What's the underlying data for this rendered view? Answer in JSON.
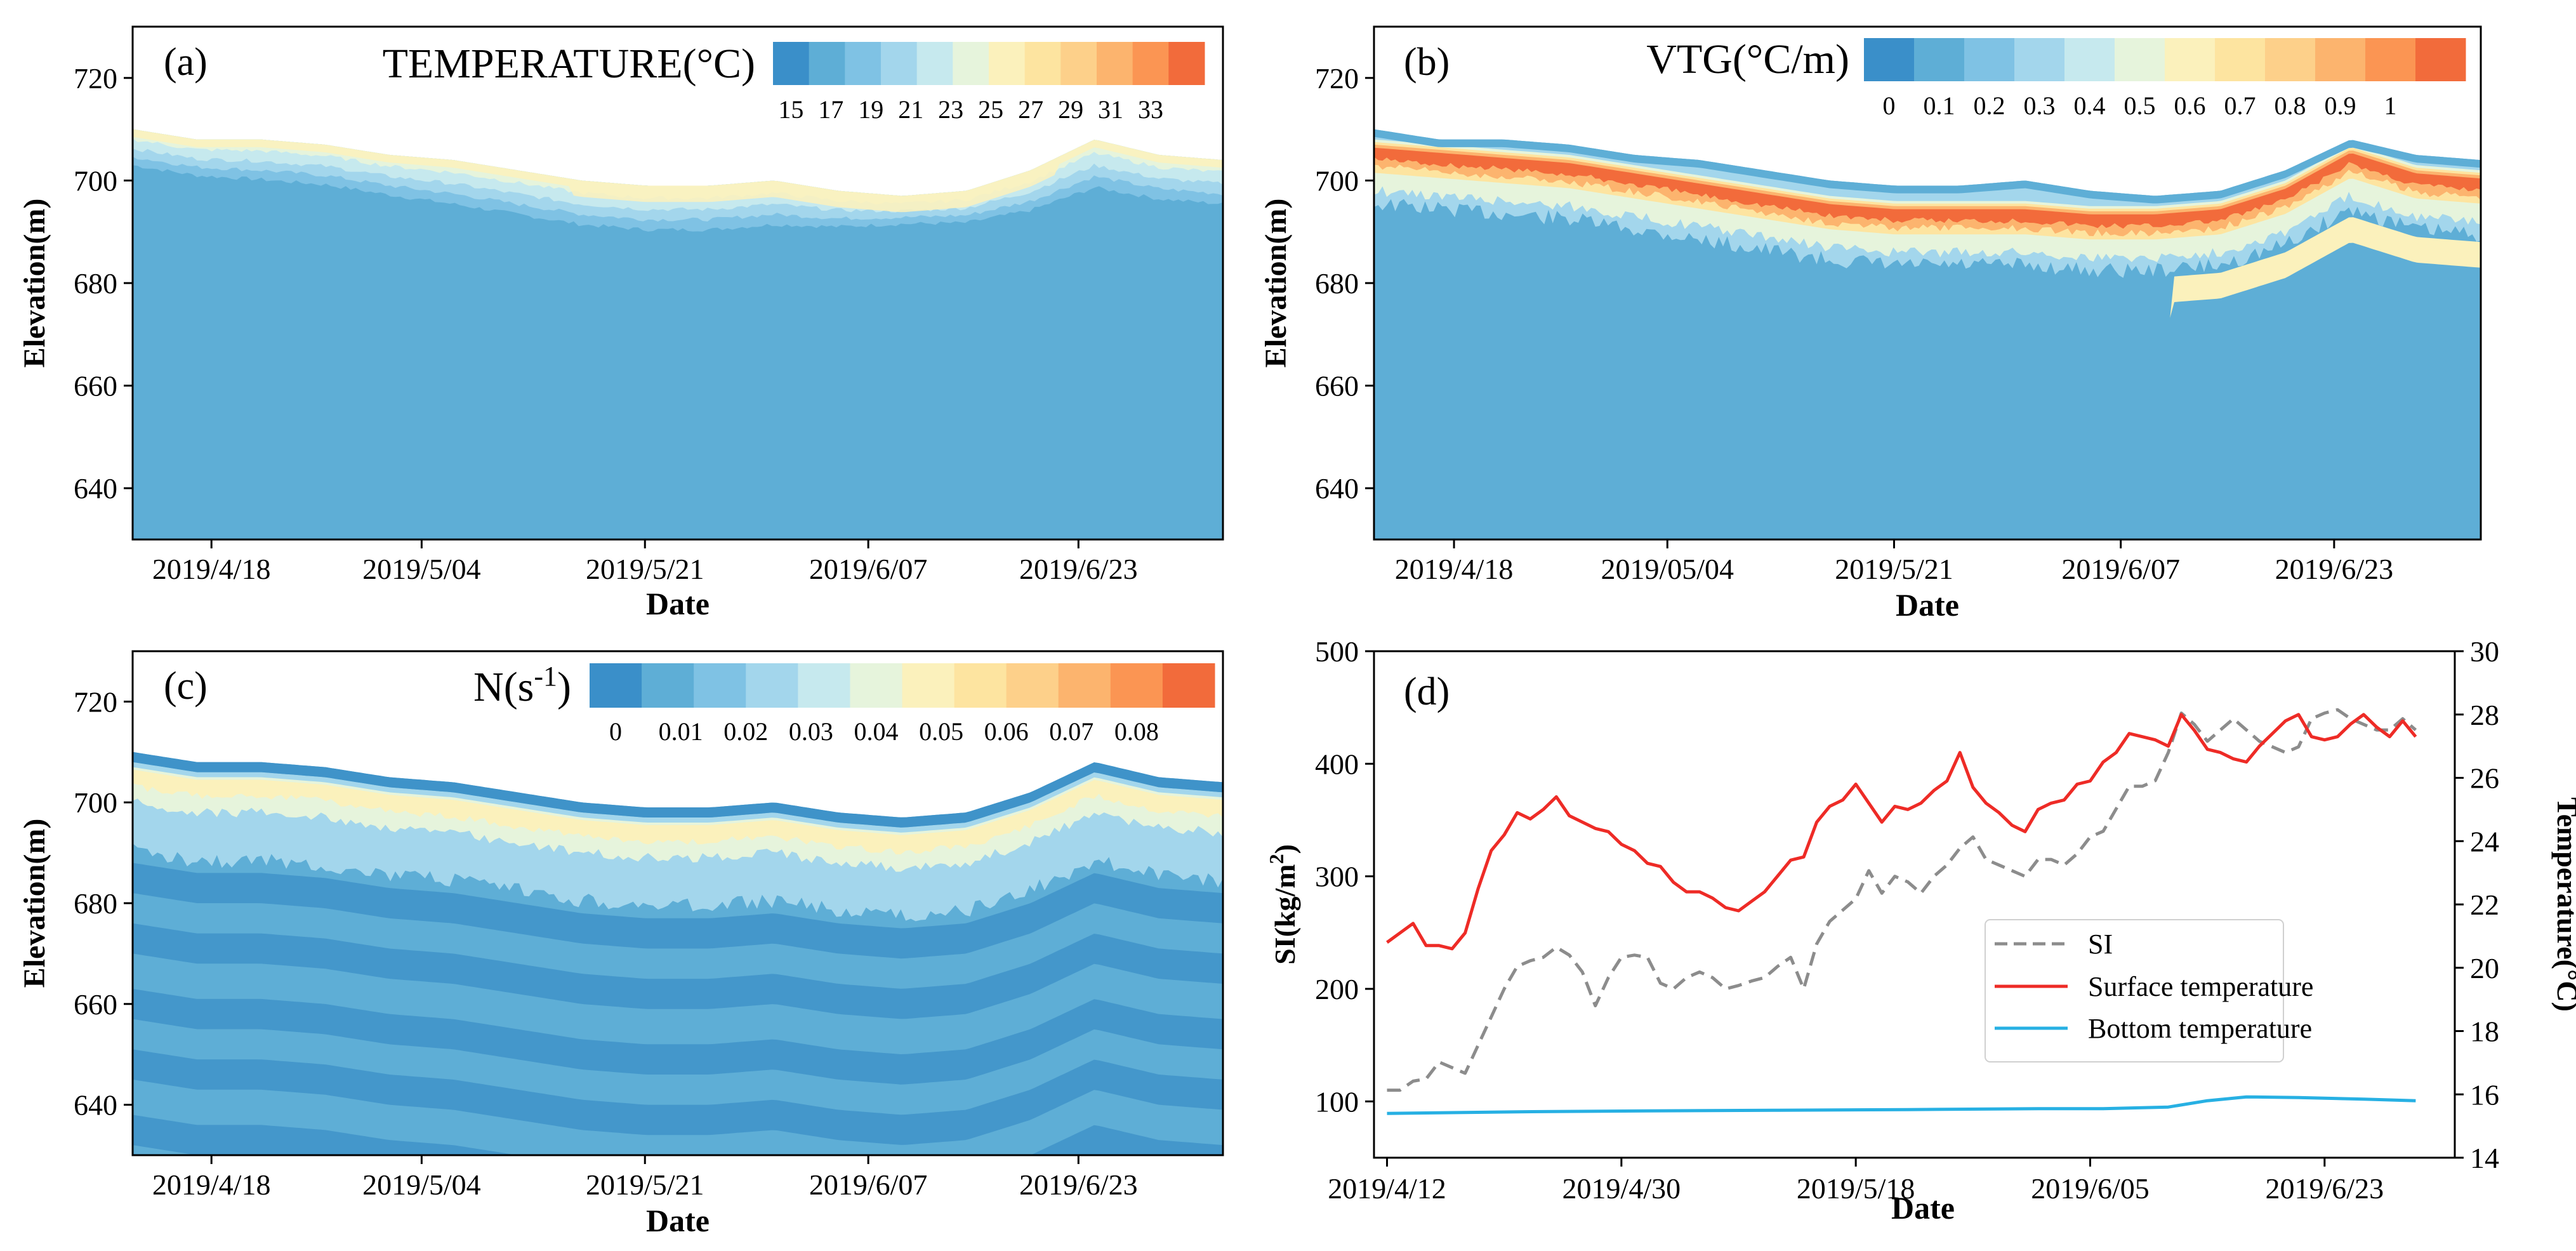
{
  "colors": {
    "fill_base": "#5eaed6",
    "line_black": "#000000",
    "si_line": "#8c8c8c",
    "surface_line": "#ee2b26",
    "bottom_line": "#27b0e3"
  },
  "chart_data": [
    {
      "id": "a",
      "type": "heatmap",
      "panel_label": "(a)",
      "colorbar_title": "TEMPERATURE(°C)",
      "colorbar_ticks": [
        "15",
        "17",
        "19",
        "21",
        "23",
        "25",
        "27",
        "29",
        "31",
        "33"
      ],
      "colorbar_colors": [
        "#3a8fc9",
        "#5eaed6",
        "#7fc2e4",
        "#a3d6ec",
        "#c6e9ee",
        "#e6f4dc",
        "#fbf1bc",
        "#fde4a0",
        "#fdd08a",
        "#fcb46e",
        "#fb9553",
        "#f26b3b"
      ],
      "xlabel": "Date",
      "ylabel": "Elevation(m)",
      "xticks": [
        "2019/4/18",
        "2019/5/04",
        "2019/5/21",
        "2019/6/07",
        "2019/6/23"
      ],
      "xtick_days": [
        6,
        22,
        39,
        56,
        72
      ],
      "x_range_days": [
        0,
        83
      ],
      "yticks": [
        640,
        660,
        680,
        700,
        720
      ],
      "ylim": [
        630,
        730
      ],
      "surface_elevation": [
        710,
        708,
        708,
        707,
        705,
        704,
        702,
        700,
        699,
        699,
        700,
        698,
        697,
        698,
        702,
        708,
        705,
        704
      ],
      "thermocline_elevation": [
        701,
        699,
        698,
        697,
        695,
        693,
        691,
        689,
        688,
        688,
        689,
        689,
        690,
        690,
        692,
        696,
        694,
        693
      ],
      "surface_value_range": [
        21,
        27
      ],
      "bottom_value": 16
    },
    {
      "id": "b",
      "type": "heatmap",
      "panel_label": "(b)",
      "colorbar_title": "VTG(°C/m)",
      "colorbar_ticks": [
        "0",
        "0.1",
        "0.2",
        "0.3",
        "0.4",
        "0.5",
        "0.6",
        "0.7",
        "0.8",
        "0.9",
        "1"
      ],
      "colorbar_colors": [
        "#3a8fc9",
        "#5eaed6",
        "#7fc2e4",
        "#a3d6ec",
        "#c6e9ee",
        "#e6f4dc",
        "#fbf1bc",
        "#fde4a0",
        "#fdd08a",
        "#fcb46e",
        "#fb9553",
        "#f26b3b"
      ],
      "xlabel": "Date",
      "ylabel": "Elevation(m)",
      "xticks": [
        "2019/4/18",
        "2019/05/04",
        "2019/5/21",
        "2019/6/07",
        "2019/6/23"
      ],
      "xtick_days": [
        6,
        22,
        39,
        56,
        72
      ],
      "x_range_days": [
        0,
        83
      ],
      "yticks": [
        640,
        660,
        680,
        700,
        720
      ],
      "ylim": [
        630,
        730
      ],
      "surface_elevation": [
        710,
        708,
        708,
        707,
        705,
        704,
        702,
        700,
        699,
        699,
        700,
        698,
        697,
        698,
        702,
        708,
        705,
        704
      ],
      "max_gradient_elevation": [
        706,
        705,
        704,
        703,
        701,
        699,
        697,
        695,
        694,
        694,
        694,
        693,
        693,
        694,
        698,
        705,
        701,
        700
      ],
      "max_gradient_value": 1.0
    },
    {
      "id": "c",
      "type": "heatmap",
      "panel_label": "(c)",
      "colorbar_title": "N(s",
      "colorbar_title_sup": "-1",
      "colorbar_title_end": ")",
      "colorbar_ticks": [
        "0",
        "0.01",
        "0.02",
        "0.03",
        "0.04",
        "0.05",
        "0.06",
        "0.07",
        "0.08"
      ],
      "colorbar_colors": [
        "#3a8fc9",
        "#5eaed6",
        "#7fc2e4",
        "#a3d6ec",
        "#c6e9ee",
        "#e6f4dc",
        "#fbf1bc",
        "#fde4a0",
        "#fdd08a",
        "#fcb46e",
        "#fb9553",
        "#f26b3b"
      ],
      "xlabel": "Date",
      "ylabel": "Elevation(m)",
      "xticks": [
        "2019/4/18",
        "2019/5/04",
        "2019/5/21",
        "2019/6/07",
        "2019/6/23"
      ],
      "xtick_days": [
        6,
        22,
        39,
        56,
        72
      ],
      "x_range_days": [
        0,
        83
      ],
      "yticks": [
        640,
        660,
        680,
        700,
        720
      ],
      "ylim": [
        630,
        730
      ],
      "surface_elevation": [
        710,
        708,
        708,
        707,
        705,
        704,
        702,
        700,
        699,
        699,
        700,
        698,
        697,
        698,
        702,
        708,
        705,
        704
      ],
      "dark_band_depths_below_surface": [
        25,
        37,
        50,
        62,
        75
      ]
    },
    {
      "id": "d",
      "type": "line",
      "panel_label": "(d)",
      "xlabel": "Date",
      "ylabel_left": "SI(kg/m",
      "ylabel_left_sup": "2",
      "ylabel_left_end": ")",
      "ylabel_right": "Temperature(°C)",
      "xticks": [
        "2019/4/12",
        "2019/4/30",
        "2019/5/18",
        "2019/6/05",
        "2019/6/23"
      ],
      "xtick_days": [
        0,
        18,
        36,
        54,
        72
      ],
      "x_range_days": [
        -1,
        82
      ],
      "ylim_left": [
        50,
        500
      ],
      "yticks_left": [
        100,
        200,
        300,
        400,
        500
      ],
      "ylim_right": [
        14,
        30
      ],
      "yticks_right": [
        14,
        16,
        18,
        20,
        22,
        24,
        26,
        28,
        30
      ],
      "legend": [
        "SI",
        "Surface temperature",
        "Bottom temperature"
      ],
      "series": [
        {
          "name": "SI",
          "axis": "left",
          "style": "dashed",
          "x": [
            0,
            1,
            2,
            3,
            4,
            5,
            6,
            7,
            8,
            9,
            10,
            11,
            12,
            13,
            14,
            15,
            16,
            17,
            18,
            19,
            20,
            21,
            22,
            23,
            24,
            25,
            26,
            27,
            28,
            29,
            30,
            31,
            32,
            33,
            34,
            35,
            36,
            37,
            38,
            39,
            40,
            41,
            42,
            43,
            44,
            45,
            46,
            47,
            48,
            49,
            50,
            51,
            52,
            53,
            54,
            55,
            56,
            57,
            58,
            59,
            60,
            61,
            62,
            63,
            64,
            65,
            66,
            67,
            68,
            69,
            70,
            71,
            72,
            73,
            74,
            75,
            76,
            77,
            78,
            79
          ],
          "values": [
            110,
            110,
            118,
            120,
            135,
            130,
            125,
            150,
            175,
            200,
            220,
            225,
            228,
            237,
            230,
            215,
            185,
            210,
            228,
            230,
            228,
            205,
            200,
            210,
            215,
            210,
            200,
            203,
            207,
            210,
            220,
            228,
            200,
            240,
            260,
            270,
            280,
            305,
            285,
            300,
            295,
            285,
            300,
            310,
            325,
            335,
            315,
            310,
            305,
            300,
            315,
            315,
            310,
            320,
            335,
            340,
            360,
            380,
            380,
            385,
            410,
            445,
            435,
            420,
            430,
            440,
            430,
            420,
            415,
            410,
            415,
            440,
            445,
            448,
            440,
            435,
            430,
            430,
            440,
            430
          ]
        },
        {
          "name": "Surface temperature",
          "axis": "right",
          "style": "solid",
          "x": [
            0,
            1,
            2,
            3,
            4,
            5,
            6,
            7,
            8,
            9,
            10,
            11,
            12,
            13,
            14,
            15,
            16,
            17,
            18,
            19,
            20,
            21,
            22,
            23,
            24,
            25,
            26,
            27,
            28,
            29,
            30,
            31,
            32,
            33,
            34,
            35,
            36,
            37,
            38,
            39,
            40,
            41,
            42,
            43,
            44,
            45,
            46,
            47,
            48,
            49,
            50,
            51,
            52,
            53,
            54,
            55,
            56,
            57,
            58,
            59,
            60,
            61,
            62,
            63,
            64,
            65,
            66,
            67,
            68,
            69,
            70,
            71,
            72,
            73,
            74,
            75,
            76,
            77,
            78,
            79
          ],
          "values": [
            20.8,
            21.1,
            21.4,
            20.7,
            20.7,
            20.6,
            21.1,
            22.5,
            23.7,
            24.2,
            24.9,
            24.7,
            25.0,
            25.4,
            24.8,
            24.6,
            24.4,
            24.3,
            23.9,
            23.7,
            23.3,
            23.2,
            22.7,
            22.4,
            22.4,
            22.2,
            21.9,
            21.8,
            22.1,
            22.4,
            22.9,
            23.4,
            23.5,
            24.6,
            25.1,
            25.3,
            25.8,
            25.2,
            24.6,
            25.1,
            25.0,
            25.2,
            25.6,
            25.9,
            26.8,
            25.7,
            25.2,
            24.9,
            24.5,
            24.3,
            25.0,
            25.2,
            25.3,
            25.8,
            25.9,
            26.5,
            26.8,
            27.4,
            27.3,
            27.2,
            27.0,
            28.0,
            27.5,
            26.9,
            26.8,
            26.6,
            26.5,
            27.0,
            27.4,
            27.8,
            28.0,
            27.3,
            27.2,
            27.3,
            27.7,
            28.0,
            27.6,
            27.3,
            27.8,
            27.3
          ]
        },
        {
          "name": "Bottom temperature",
          "axis": "right",
          "style": "solid",
          "x": [
            0,
            10,
            20,
            30,
            40,
            50,
            55,
            60,
            63,
            66,
            70,
            75,
            79
          ],
          "values": [
            15.4,
            15.45,
            15.48,
            15.5,
            15.52,
            15.55,
            15.55,
            15.6,
            15.8,
            15.92,
            15.9,
            15.85,
            15.8
          ]
        }
      ]
    }
  ]
}
